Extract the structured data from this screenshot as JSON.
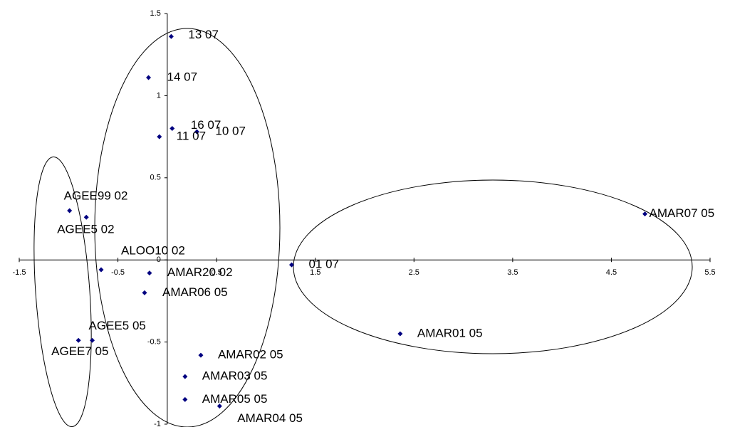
{
  "chart_data": {
    "type": "scatter",
    "color": "#000080",
    "labels": [
      "13 07",
      "14 07",
      "16 07",
      "10 07",
      "11 07",
      "AGEE99 02",
      "AGEE5 02",
      "ALOO10 02",
      "AMAR20 02",
      "AMAR06 05",
      "AGEE5 05",
      "AGEE7 05",
      "AMAR02 05",
      "AMAR03 05",
      "AMAR05 05",
      "AMAR04 05",
      "01 07",
      "AMAR01 05",
      "AMAR07 05"
    ],
    "x": [
      0.04,
      -0.19,
      0.05,
      0.3,
      -0.08,
      -0.99,
      -0.82,
      -0.67,
      -0.18,
      -0.23,
      -0.76,
      -0.9,
      0.34,
      0.18,
      0.18,
      0.53,
      1.26,
      2.36,
      4.84
    ],
    "values": [
      1.36,
      1.11,
      0.8,
      0.78,
      0.75,
      0.3,
      0.26,
      -0.06,
      -0.08,
      -0.2,
      -0.49,
      -0.49,
      -0.58,
      -0.71,
      -0.85,
      -0.89,
      -0.03,
      -0.45,
      0.28
    ],
    "xlim": [
      -1.5,
      5.5
    ],
    "xticks": [
      -1.5,
      -0.5,
      0.5,
      1.5,
      2.5,
      3.5,
      4.5,
      5.5
    ],
    "ylim": [
      -1,
      1.5
    ],
    "yticks": [
      -1,
      -0.5,
      0,
      0.5,
      1,
      1.5
    ]
  }
}
